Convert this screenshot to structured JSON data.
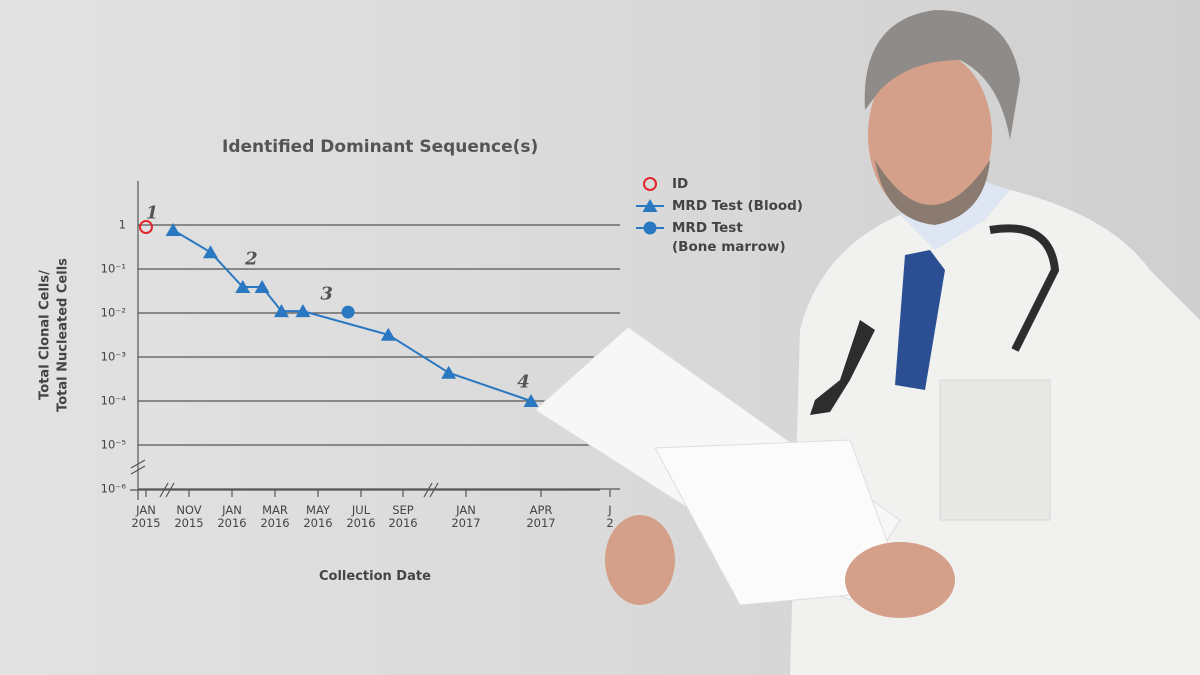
{
  "chart_data": {
    "type": "line",
    "title": "Identified Dominant Sequence(s)",
    "xlabel": "Collection Date",
    "ylabel": [
      "Total Clonal Cells/",
      "Total Nucleated Cells"
    ],
    "log_y": true,
    "grid": true,
    "legend": "upper right",
    "xlim": [
      0,
      30
    ],
    "xticks": [
      {
        "value": 0,
        "label": "JAN\n2015"
      },
      {
        "value": 10,
        "label": "NOV\n2015"
      },
      {
        "value": 12,
        "label": "JAN\n2016"
      },
      {
        "value": 14,
        "label": "MAR\n2016"
      },
      {
        "value": 16,
        "label": "MAY\n2016"
      },
      {
        "value": 18,
        "label": "JUL\n2016"
      },
      {
        "value": 20,
        "label": "SEP\n2016"
      },
      {
        "value": 24,
        "label": "JAN\n2017"
      },
      {
        "value": 27,
        "label": "APR\n2017"
      },
      {
        "value": 30,
        "label": "J\n2"
      }
    ],
    "ylim": [
      1e-06,
      10
    ],
    "yticks": [
      {
        "value": 1e-06,
        "label": "10⁻⁶"
      },
      {
        "value": 1e-05,
        "label": "10⁻⁵"
      },
      {
        "value": 0.0001,
        "label": "10⁻⁴"
      },
      {
        "value": 0.001,
        "label": "10⁻³"
      },
      {
        "value": 0.01,
        "label": "10⁻²"
      },
      {
        "value": 0.1,
        "label": "10⁻¹"
      },
      1
    ],
    "series": [
      {
        "name": "ID",
        "color": "#e0262b",
        "marker": "open-circle",
        "line": false,
        "x": [
          0
        ],
        "values": [
          0.9
        ]
      },
      {
        "name": "MRD Test (Blood)",
        "color": "#2a78c2",
        "marker": "triangle",
        "line": true,
        "x": [
          6.3,
          11,
          12.5,
          13.4,
          14.3,
          15.3,
          19.3,
          22.9,
          26.6
        ],
        "values": [
          0.77,
          0.24,
          0.039,
          0.039,
          0.011,
          0.011,
          0.0032,
          0.00044,
          0.0001
        ]
      },
      {
        "name": "MRD Test\n(Bone marrow)",
        "color": "#2a78c2",
        "marker": "circle",
        "line": false,
        "x": [
          17.4
        ],
        "values": [
          0.0105
        ]
      }
    ],
    "annotations": [
      {
        "text": "1",
        "x": 1.4,
        "y": 1.8
      },
      {
        "text": "2",
        "x": 12.9,
        "y": 0.16
      },
      {
        "text": "3",
        "x": 16.4,
        "y": 0.025
      },
      {
        "text": "4",
        "x": 26.3,
        "y": 0.00026
      }
    ]
  }
}
